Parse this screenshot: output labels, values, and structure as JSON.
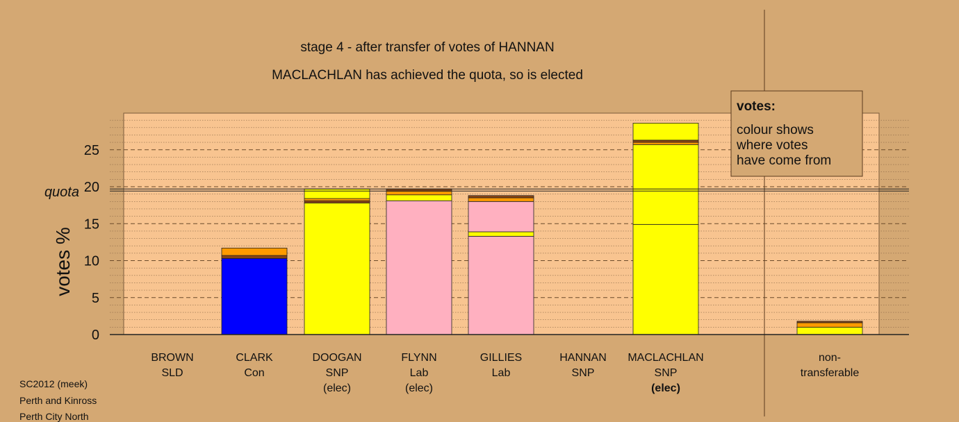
{
  "chart_data": {
    "type": "bar",
    "stacked": true,
    "title": "stage 4 - after transfer of votes of HANNAN",
    "subtitle": "MACLACHLAN has achieved the quota, so is elected",
    "ylabel": "votes %",
    "ylim": [
      0,
      30
    ],
    "yticks": [
      "0",
      "5",
      "10",
      "15",
      "20",
      "25"
    ],
    "quota": 19.7,
    "quota_label": "quota",
    "grid": true,
    "legend": {
      "title": "votes:",
      "lines": [
        "colour shows",
        "where votes",
        "have come from"
      ],
      "position": "top-right"
    },
    "colors": {
      "background": "#d4a873",
      "plot_bg": "#f8c490",
      "SLD": "#ff9a00",
      "Con": "#0000ff",
      "SNP": "#ffff00",
      "Lab": "#ffb0c0",
      "brown": "#8b4513"
    },
    "categories": [
      {
        "name": "BROWN",
        "party": "SLD",
        "status": ""
      },
      {
        "name": "CLARK",
        "party": "Con",
        "status": ""
      },
      {
        "name": "DOOGAN",
        "party": "SNP",
        "status": "(elec)"
      },
      {
        "name": "FLYNN",
        "party": "Lab",
        "status": "(elec)"
      },
      {
        "name": "GILLIES",
        "party": "Lab",
        "status": ""
      },
      {
        "name": "HANNAN",
        "party": "SNP",
        "status": ""
      },
      {
        "name": "MACLACHLAN",
        "party": "SNP",
        "status": "(elec)"
      },
      {
        "name": "non-",
        "party": "transferable",
        "status": ""
      }
    ],
    "stacks": [
      [],
      [
        {
          "value": 10.3,
          "color": "Con"
        },
        {
          "value": 0.4,
          "color": "brown"
        },
        {
          "value": 1.0,
          "color": "SLD"
        }
      ],
      [
        {
          "value": 17.8,
          "color": "SNP"
        },
        {
          "value": 0.3,
          "color": "brown"
        },
        {
          "value": 0.3,
          "color": "SLD"
        },
        {
          "value": 1.3,
          "color": "SNP"
        }
      ],
      [
        {
          "value": 18.1,
          "color": "Lab"
        },
        {
          "value": 0.8,
          "color": "SNP"
        },
        {
          "value": 0.5,
          "color": "SLD"
        },
        {
          "value": 0.3,
          "color": "brown"
        }
      ],
      [
        {
          "value": 13.3,
          "color": "Lab"
        },
        {
          "value": 0.6,
          "color": "SNP"
        },
        {
          "value": 4.1,
          "color": "Lab"
        },
        {
          "value": 0.5,
          "color": "SLD"
        },
        {
          "value": 0.3,
          "color": "brown"
        }
      ],
      [],
      [
        {
          "value": 14.9,
          "color": "SNP"
        },
        {
          "value": 10.8,
          "color": "SNP"
        },
        {
          "value": 0.3,
          "color": "SLD"
        },
        {
          "value": 0.3,
          "color": "brown"
        },
        {
          "value": 2.3,
          "color": "SNP"
        }
      ],
      [
        {
          "value": 1.0,
          "color": "SNP"
        },
        {
          "value": 0.6,
          "color": "SLD"
        },
        {
          "value": 0.2,
          "color": "brown"
        }
      ]
    ]
  },
  "footer": {
    "line1": "SC2012 (meek)",
    "line2": "Perth and Kinross",
    "line3": "Perth City North"
  }
}
